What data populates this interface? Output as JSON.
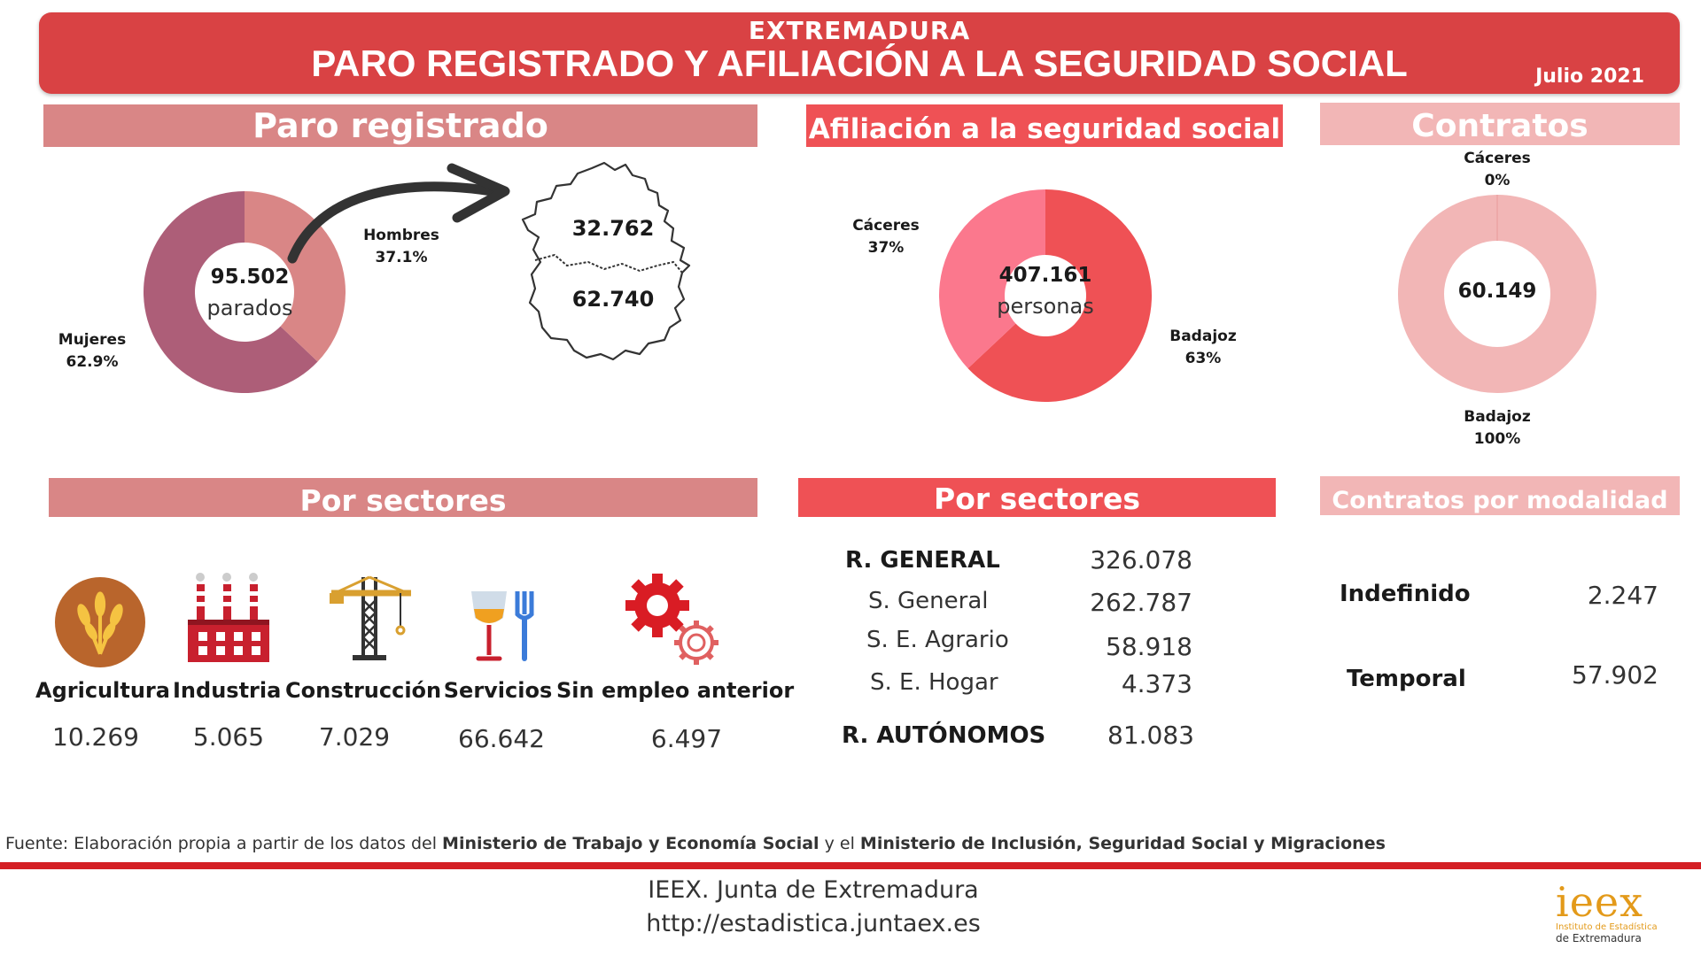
{
  "header": {
    "region": "EXTREMADURA",
    "title": "PARO REGISTRADO Y AFILIACIÓN A LA SEGURIDAD SOCIAL",
    "date": "Julio 2021"
  },
  "colors": {
    "header_red": "#d94244",
    "paro_band": "#d98686",
    "afil_band": "#ef5155",
    "contratos_band": "#f2b6b6",
    "mujeres": "#ad5e78",
    "hombres": "#d98686",
    "badajoz": "#ef5155",
    "caceres": "#fb788d",
    "contratos": "#f2b6b6"
  },
  "paro": {
    "band_title": "Paro registrado",
    "total_value": "95.502",
    "total_unit": "parados",
    "hombres_label": "Hombres",
    "hombres_pct": "37.1%",
    "mujeres_label": "Mujeres",
    "mujeres_pct": "62.9%",
    "map_north_value": "32.762",
    "map_south_value": "62.740"
  },
  "afiliacion": {
    "band_title": "Afiliación a la seguridad social",
    "total_value": "407.161",
    "total_unit": "personas",
    "caceres_label": "Cáceres",
    "caceres_pct": "37%",
    "badajoz_label": "Badajoz",
    "badajoz_pct": "63%"
  },
  "contratos": {
    "band_title": "Contratos",
    "total_value": "60.149",
    "caceres_label": "Cáceres",
    "caceres_pct": "0%",
    "badajoz_label": "Badajoz",
    "badajoz_pct": "100%"
  },
  "chart_data": [
    {
      "type": "pie",
      "variant": "donut",
      "name_ref": "paro",
      "series": [
        {
          "label": "Mujeres",
          "value": 62.9
        },
        {
          "label": "Hombres",
          "value": 37.1
        }
      ]
    },
    {
      "type": "pie",
      "variant": "donut",
      "name_ref": "afiliacion",
      "series": [
        {
          "label": "Badajoz",
          "value": 63
        },
        {
          "label": "Cáceres",
          "value": 37
        }
      ]
    },
    {
      "type": "pie",
      "variant": "donut",
      "name_ref": "contratos",
      "series": [
        {
          "label": "Badajoz",
          "value": 100
        },
        {
          "label": "Cáceres",
          "value": 0
        }
      ]
    }
  ],
  "paro_sectores": {
    "band_title": "Por sectores",
    "items": [
      {
        "name": "Agricultura",
        "value": "10.269",
        "icon": "wheat-icon"
      },
      {
        "name": "Industria",
        "value": "5.065",
        "icon": "factory-icon"
      },
      {
        "name": "Construcción",
        "value": "7.029",
        "icon": "crane-icon"
      },
      {
        "name": "Servicios",
        "value": "66.642",
        "icon": "glass-fork-icon"
      },
      {
        "name": "Sin empleo anterior",
        "value": "6.497",
        "icon": "gears-icon"
      }
    ]
  },
  "afil_sectores": {
    "band_title": "Por sectores",
    "rows": [
      {
        "label": "R. GENERAL",
        "value": "326.078"
      },
      {
        "label": "S. General",
        "value": "262.787"
      },
      {
        "label": "S. E. Agrario",
        "value": "58.918"
      },
      {
        "label": "S. E. Hogar",
        "value": "4.373"
      },
      {
        "label": "R. AUTÓNOMOS",
        "value": "81.083"
      }
    ]
  },
  "contratos_modalidad": {
    "band_title": "Contratos por modalidad",
    "rows": [
      {
        "label": "Indefinido",
        "value": "2.247"
      },
      {
        "label": "Temporal",
        "value": "57.902"
      }
    ]
  },
  "footer": {
    "source_prefix": "Fuente: Elaboración propia a partir de los datos del ",
    "source_org1": "Ministerio de Trabajo y Economía Social",
    "source_mid": " y el ",
    "source_org2": "Ministerio de Inclusión, Seguridad Social y Migraciones",
    "line1": "IEEX. Junta de Extremadura",
    "line2": "http://estadistica.juntaex.es",
    "logo_word": "ieex",
    "logo_sub1": "Instituto de Estadística",
    "logo_sub2": "de Extremadura"
  }
}
